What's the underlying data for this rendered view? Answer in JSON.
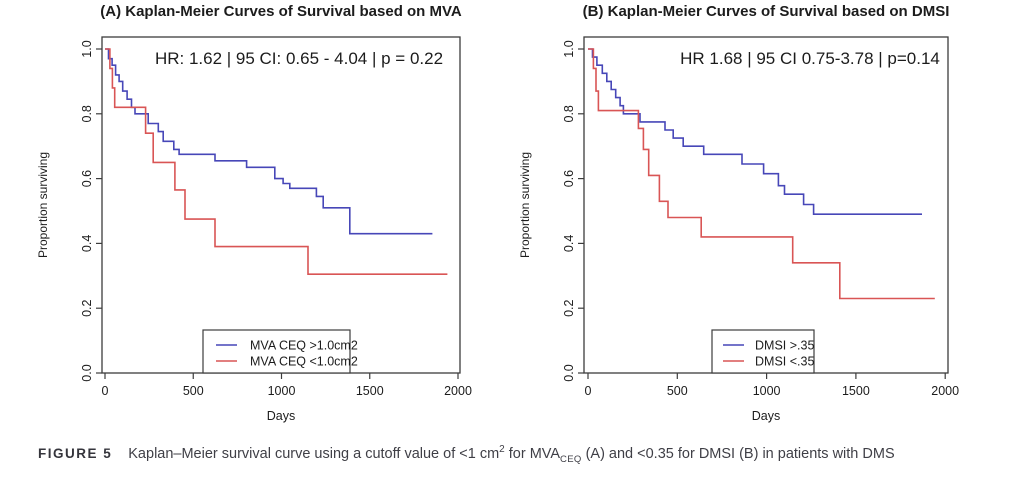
{
  "colors": {
    "blue": "#4747b8",
    "red": "#d95555",
    "axis": "#3c3c3c",
    "text": "#1c1c1c"
  },
  "figure": {
    "caption": {
      "label": "FIGURE 5",
      "part1": "Kaplan–Meier survival curve using a cutoff value of <1 cm",
      "sup": "2",
      "part2": " for MVA",
      "sub": "CEQ",
      "part3": " (A) and <0.35 for DMSI (B) in patients with DMS"
    }
  },
  "chart_data": [
    {
      "type": "line",
      "subtype": "kaplan-meier-step",
      "title": "(A) Kaplan-Meier Curves of Survival based on MVA",
      "annotation": "HR: 1.62 | 95 CI: 0.65 - 4.04 | p = 0.22",
      "xlabel": "Days",
      "ylabel": "Proportion surviving",
      "xlim": [
        0,
        2000
      ],
      "ylim": [
        0,
        1
      ],
      "x_ticks": [
        0,
        500,
        1000,
        1500,
        2000
      ],
      "y_ticks": [
        "0.0",
        "0.2",
        "0.4",
        "0.6",
        "0.8",
        "1.0"
      ],
      "grid": false,
      "legend_position": "bottom-center-inside",
      "legend": [
        "MVA CEQ >1.0cm2",
        "MVA CEQ <1.0cm2"
      ],
      "series": [
        {
          "name": "MVA CEQ >1.0cm2",
          "color_key": "blue",
          "steps": [
            [
              0,
              1.0
            ],
            [
              20,
              0.97
            ],
            [
              40,
              0.95
            ],
            [
              60,
              0.92
            ],
            [
              80,
              0.9
            ],
            [
              100,
              0.87
            ],
            [
              125,
              0.845
            ],
            [
              150,
              0.82
            ],
            [
              170,
              0.8
            ],
            [
              245,
              0.77
            ],
            [
              302,
              0.745
            ],
            [
              330,
              0.715
            ],
            [
              390,
              0.69
            ],
            [
              420,
              0.675
            ],
            [
              623,
              0.655
            ],
            [
              802,
              0.635
            ],
            [
              962,
              0.6
            ],
            [
              1009,
              0.585
            ],
            [
              1047,
              0.57
            ],
            [
              1198,
              0.545
            ],
            [
              1236,
              0.51
            ],
            [
              1387,
              0.43
            ],
            [
              1855,
              0.43
            ]
          ]
        },
        {
          "name": "MVA CEQ <1.0cm2",
          "color_key": "red",
          "steps": [
            [
              0,
              1.0
            ],
            [
              28,
              0.94
            ],
            [
              42,
              0.88
            ],
            [
              55,
              0.82
            ],
            [
              230,
              0.74
            ],
            [
              273,
              0.65
            ],
            [
              396,
              0.565
            ],
            [
              453,
              0.475
            ],
            [
              623,
              0.39
            ],
            [
              1150,
              0.305
            ],
            [
              1940,
              0.305
            ]
          ]
        }
      ]
    },
    {
      "type": "line",
      "subtype": "kaplan-meier-step",
      "title": "(B) Kaplan-Meier Curves of Survival based on DMSI",
      "annotation": "HR 1.68 | 95 CI 0.75-3.78 | p=0.14",
      "xlabel": "Days",
      "ylabel": "Proportion surviving",
      "xlim": [
        0,
        2000
      ],
      "ylim": [
        0,
        1
      ],
      "x_ticks": [
        0,
        500,
        1000,
        1500,
        2000
      ],
      "y_ticks": [
        "0.0",
        "0.2",
        "0.4",
        "0.6",
        "0.8",
        "1.0"
      ],
      "grid": false,
      "legend_position": "bottom-center-inside",
      "legend": [
        "DMSI >.35",
        "DMSI <.35"
      ],
      "series": [
        {
          "name": "DMSI >.35",
          "color_key": "blue",
          "steps": [
            [
              0,
              1.0
            ],
            [
              25,
              0.975
            ],
            [
              50,
              0.95
            ],
            [
              80,
              0.925
            ],
            [
              105,
              0.9
            ],
            [
              130,
              0.875
            ],
            [
              155,
              0.85
            ],
            [
              180,
              0.825
            ],
            [
              198,
              0.8
            ],
            [
              291,
              0.775
            ],
            [
              431,
              0.75
            ],
            [
              477,
              0.725
            ],
            [
              533,
              0.7
            ],
            [
              648,
              0.675
            ],
            [
              862,
              0.645
            ],
            [
              983,
              0.615
            ],
            [
              1066,
              0.578
            ],
            [
              1100,
              0.552
            ],
            [
              1207,
              0.52
            ],
            [
              1263,
              0.49
            ],
            [
              1870,
              0.49
            ]
          ]
        },
        {
          "name": "DMSI <.35",
          "color_key": "red",
          "steps": [
            [
              0,
              1.0
            ],
            [
              30,
              0.94
            ],
            [
              45,
              0.87
            ],
            [
              58,
              0.81
            ],
            [
              282,
              0.755
            ],
            [
              310,
              0.69
            ],
            [
              340,
              0.61
            ],
            [
              400,
              0.53
            ],
            [
              448,
              0.48
            ],
            [
              634,
              0.42
            ],
            [
              1146,
              0.34
            ],
            [
              1410,
              0.23
            ],
            [
              1942,
              0.23
            ]
          ]
        }
      ]
    }
  ]
}
